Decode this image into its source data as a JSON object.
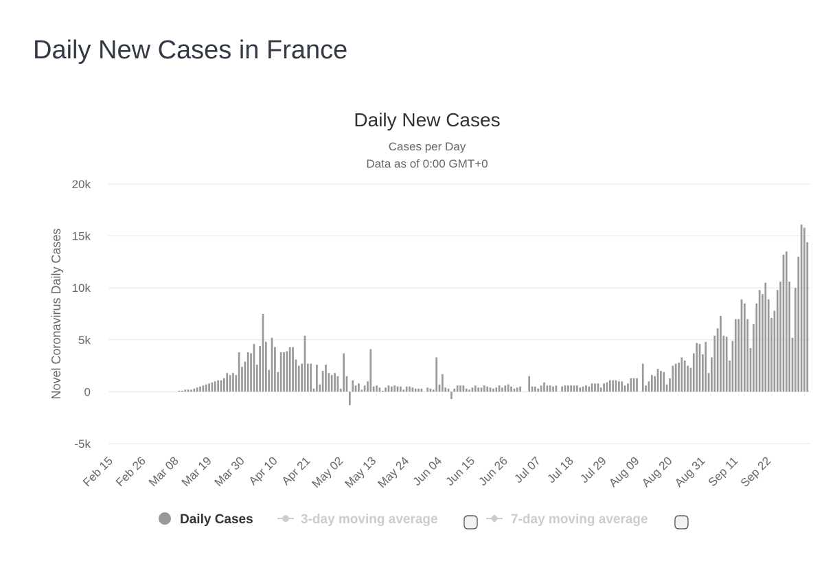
{
  "page": {
    "title": "Daily New Cases in France"
  },
  "colors": {
    "bar": "#999999",
    "grid": "#e6e6e6",
    "legend_active": "#333333",
    "legend_inactive": "#cccccc"
  },
  "chart_data": {
    "type": "bar",
    "title": "Daily New Cases",
    "subtitle_lines": [
      "Cases per Day",
      "Data as of 0:00 GMT+0"
    ],
    "xlabel": "",
    "ylabel": "Novel Coronavirus Daily Cases",
    "ylim": [
      -5000,
      20000
    ],
    "yticks": [
      {
        "value": -5000,
        "label": "-5k"
      },
      {
        "value": 0,
        "label": "0"
      },
      {
        "value": 5000,
        "label": "5k"
      },
      {
        "value": 10000,
        "label": "10k"
      },
      {
        "value": 15000,
        "label": "15k"
      },
      {
        "value": 20000,
        "label": "20k"
      }
    ],
    "grid": true,
    "x_start_date": "2020-02-15",
    "xtick_labels": [
      "Feb 15",
      "Feb 26",
      "Mar 08",
      "Mar 19",
      "Mar 30",
      "Apr 10",
      "Apr 21",
      "May 02",
      "May 13",
      "May 24",
      "Jun 04",
      "Jun 15",
      "Jun 26",
      "Jul 07",
      "Jul 18",
      "Jul 29",
      "Aug 09",
      "Aug 20",
      "Aug 31",
      "Sep 11",
      "Sep 22"
    ],
    "xtick_every_days": 11,
    "series": [
      {
        "name": "Daily Cases",
        "active": true,
        "values": [
          0,
          0,
          0,
          0,
          0,
          0,
          0,
          0,
          0,
          0,
          0,
          0,
          0,
          0,
          0,
          0,
          0,
          0,
          0,
          0,
          0,
          0,
          100,
          100,
          200,
          200,
          200,
          300,
          400,
          500,
          600,
          700,
          800,
          900,
          1000,
          1100,
          1100,
          1300,
          1800,
          1600,
          1800,
          1600,
          3800,
          2400,
          2900,
          3800,
          3700,
          4600,
          2600,
          4400,
          7500,
          4800,
          2100,
          5200,
          4300,
          1900,
          3800,
          3800,
          3900,
          4300,
          4300,
          3100,
          2500,
          2700,
          5400,
          2700,
          2700,
          300,
          2600,
          700,
          2000,
          2600,
          1800,
          1600,
          1800,
          1500,
          300,
          3700,
          1500,
          -1300,
          1100,
          600,
          800,
          200,
          600,
          1000,
          4100,
          500,
          600,
          400,
          100,
          400,
          600,
          500,
          600,
          500,
          500,
          200,
          500,
          500,
          400,
          300,
          300,
          300,
          0,
          400,
          300,
          200,
          3300,
          700,
          1700,
          400,
          300,
          -700,
          300,
          600,
          600,
          600,
          300,
          200,
          400,
          600,
          400,
          400,
          600,
          500,
          400,
          300,
          400,
          600,
          400,
          600,
          700,
          500,
          300,
          400,
          500,
          0,
          0,
          1500,
          500,
          500,
          300,
          600,
          900,
          600,
          600,
          500,
          600,
          0,
          500,
          600,
          600,
          600,
          600,
          600,
          400,
          500,
          600,
          500,
          800,
          800,
          800,
          400,
          800,
          900,
          1100,
          1100,
          1100,
          1000,
          1000,
          600,
          800,
          1300,
          1300,
          1300,
          0,
          2700,
          600,
          1000,
          1600,
          1500,
          2200,
          2000,
          1900,
          700,
          1300,
          2500,
          2700,
          2800,
          3300,
          3000,
          2500,
          2300,
          3700,
          4700,
          4600,
          3600,
          4800,
          1800,
          3300,
          5400,
          6100,
          7300,
          5400,
          5300,
          3000,
          4900,
          7000,
          7000,
          8900,
          8500,
          7000,
          4200,
          6500,
          8500,
          9800,
          9400,
          10500,
          8900,
          7100,
          7800,
          9800,
          10600,
          13200,
          13500,
          10600,
          5200,
          10000,
          13000,
          16100,
          15800,
          14400
        ]
      },
      {
        "name": "3-day moving average",
        "active": false
      },
      {
        "name": "7-day moving average",
        "active": false
      }
    ]
  }
}
